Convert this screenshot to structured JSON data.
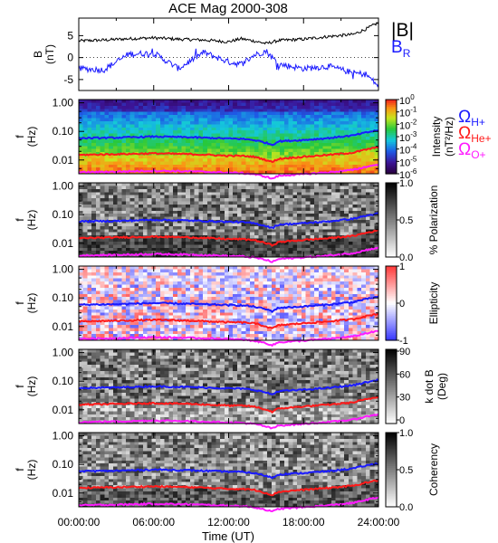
{
  "title": "ACE Mag 2000-308",
  "colors": {
    "B": "#000000",
    "BR": "#1a1aff",
    "OmegaH": "#1a1aff",
    "OmegaHe": "#ff1a1a",
    "OmegaO": "#ff1aff"
  },
  "legends": {
    "mag": [
      {
        "symbol": "|B|",
        "color": "#000000"
      },
      {
        "symbol": "B",
        "sub": "R",
        "color": "#1a1aff"
      }
    ],
    "gyro": [
      {
        "symbol": "Ω",
        "sub": "H+",
        "color": "#1a1aff"
      },
      {
        "symbol": "Ω",
        "sub": "He+",
        "color": "#ff1a1a"
      },
      {
        "symbol": "Ω",
        "sub": "O+",
        "color": "#ff1aff"
      }
    ]
  },
  "xaxis": {
    "label": "Time (UT)",
    "ticks": [
      "00:00:00",
      "06:00:00",
      "12:00:00",
      "18:00:00",
      "24:00:00"
    ]
  },
  "chart_data": [
    {
      "type": "line",
      "panel": "magnetic-field",
      "ylabel": "B",
      "yunits": "(nT)",
      "ylim": [
        -7.5,
        9
      ],
      "yticks": [
        -5,
        0,
        5
      ],
      "x_hours": [
        0,
        2,
        4,
        6,
        8,
        10,
        12,
        13,
        14,
        15,
        16,
        18,
        20,
        22,
        23,
        24
      ],
      "series": [
        {
          "name": "|B|",
          "values": [
            3.8,
            4.0,
            4.3,
            4.5,
            4.2,
            4.0,
            3.6,
            4.3,
            3.8,
            3.2,
            3.9,
            4.2,
            4.8,
            5.3,
            6.5,
            8.0
          ]
        },
        {
          "name": "BR",
          "values": [
            -2.5,
            -2.8,
            0.8,
            1.0,
            -2.5,
            1.2,
            -1.0,
            -1.5,
            0.5,
            1.5,
            -1.5,
            -2.5,
            -2.0,
            -3.5,
            -3.8,
            -6.5
          ]
        }
      ]
    },
    {
      "type": "heatmap",
      "panel": "intensity",
      "ylabel": "f",
      "yunits": "(Hz)",
      "yticks": [
        "1.00",
        "0.10",
        "0.01"
      ],
      "colorbar": {
        "label": "Intensity (nT²/Hz)",
        "ticks": [
          "10^0",
          "10^-1",
          "10^-2",
          "10^-3",
          "10^-4",
          "10^-5",
          "10^-6"
        ]
      },
      "overlays": "gyrofrequencies"
    },
    {
      "type": "heatmap",
      "panel": "polarization",
      "ylabel": "f",
      "yunits": "(Hz)",
      "yticks": [
        "1.00",
        "0.10",
        "0.01"
      ],
      "colorbar": {
        "label": "% Polarization",
        "ticks": [
          "1.0",
          "0.5",
          "0.0"
        ]
      },
      "overlays": "gyrofrequencies"
    },
    {
      "type": "heatmap",
      "panel": "ellipticity",
      "ylabel": "f",
      "yunits": "(Hz)",
      "yticks": [
        "1.00",
        "0.10",
        "0.01"
      ],
      "colorbar": {
        "label": "Ellipticity",
        "ticks": [
          "1",
          "0",
          "-1"
        ]
      },
      "overlays": "gyrofrequencies"
    },
    {
      "type": "heatmap",
      "panel": "k-dot-b",
      "ylabel": "f",
      "yunits": "(Hz)",
      "yticks": [
        "1.00",
        "0.10",
        "0.01"
      ],
      "colorbar": {
        "label": "k dot B (Deg)",
        "ticks": [
          "90",
          "60",
          "30",
          "0"
        ]
      },
      "overlays": "gyrofrequencies"
    },
    {
      "type": "heatmap",
      "panel": "coherency",
      "ylabel": "f",
      "yunits": "(Hz)",
      "yticks": [
        "1.00",
        "0.10",
        "0.01"
      ],
      "colorbar": {
        "label": "Coherency",
        "ticks": [
          "1.0",
          "0.5",
          "0.0"
        ]
      },
      "overlays": "gyrofrequencies"
    }
  ],
  "gyrofrequencies_hz": {
    "x_hours": [
      0,
      3,
      6,
      9,
      12,
      13,
      14,
      15,
      15.5,
      16,
      18,
      20,
      22,
      24
    ],
    "H+": [
      0.058,
      0.06,
      0.066,
      0.062,
      0.056,
      0.055,
      0.05,
      0.04,
      0.034,
      0.045,
      0.05,
      0.058,
      0.072,
      0.11
    ],
    "He+": [
      0.015,
      0.016,
      0.017,
      0.016,
      0.014,
      0.014,
      0.013,
      0.01,
      0.0085,
      0.011,
      0.013,
      0.015,
      0.018,
      0.028
    ],
    "O+": [
      0.0037,
      0.0039,
      0.0042,
      0.004,
      0.0036,
      0.0035,
      0.0032,
      0.0026,
      0.0022,
      0.0028,
      0.0032,
      0.0037,
      0.0045,
      0.007
    ]
  }
}
